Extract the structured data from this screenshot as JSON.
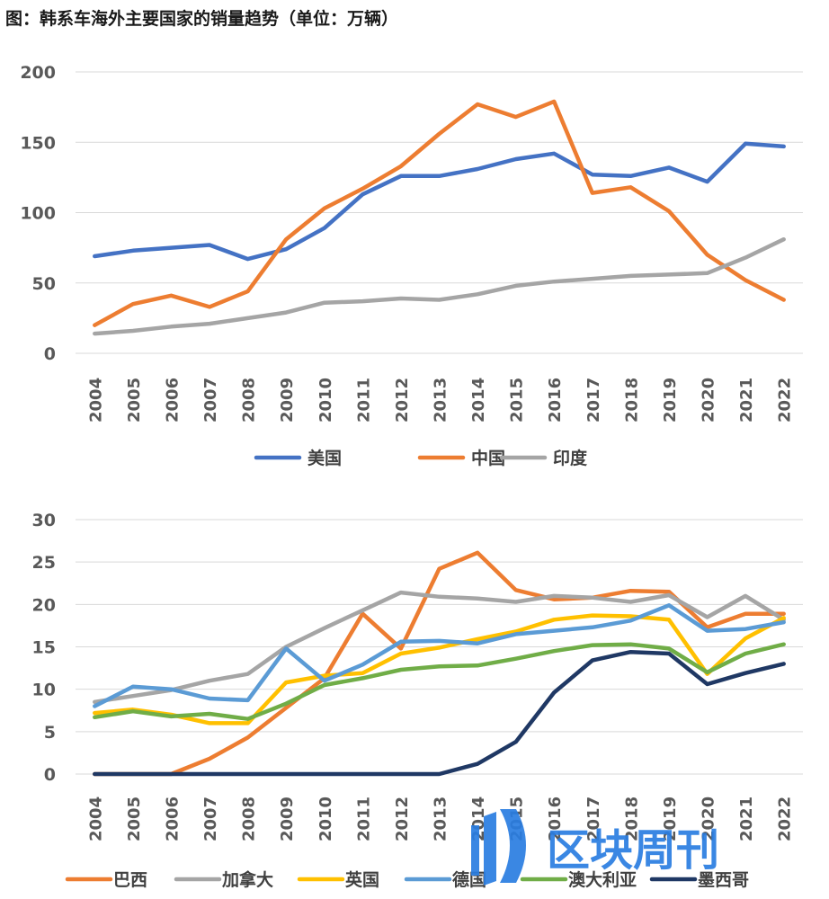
{
  "figure_title": "图：韩系车海外主要国家的销量趋势（单位：万辆）",
  "watermark": {
    "text": "区块周刊",
    "color": "#2a7de1"
  },
  "chart_data": [
    {
      "type": "line",
      "title": "",
      "xlabel": "",
      "ylabel": "",
      "x": [
        "2004",
        "2005",
        "2006",
        "2007",
        "2008",
        "2009",
        "2010",
        "2011",
        "2012",
        "2013",
        "2014",
        "2015",
        "2016",
        "2017",
        "2018",
        "2019",
        "2020",
        "2021",
        "2022"
      ],
      "ylim": [
        0,
        200
      ],
      "yticks": [
        0,
        50,
        100,
        150,
        200
      ],
      "grid": true,
      "legend": "bottom",
      "series": [
        {
          "name": "美国",
          "color": "#4472c4",
          "values": [
            69,
            73,
            75,
            77,
            67,
            74,
            89,
            113,
            126,
            126,
            131,
            138,
            142,
            127,
            126,
            132,
            122,
            149,
            147
          ]
        },
        {
          "name": "中国",
          "color": "#ed7d31",
          "values": [
            20,
            35,
            41,
            33,
            44,
            81,
            103,
            117,
            133,
            156,
            177,
            168,
            179,
            114,
            118,
            101,
            70,
            52,
            38
          ]
        },
        {
          "name": "印度",
          "color": "#a5a5a5",
          "values": [
            14,
            16,
            19,
            21,
            25,
            29,
            36,
            37,
            39,
            38,
            42,
            48,
            51,
            53,
            55,
            56,
            57,
            68,
            81
          ]
        }
      ]
    },
    {
      "type": "line",
      "title": "",
      "xlabel": "",
      "ylabel": "",
      "x": [
        "2004",
        "2005",
        "2006",
        "2007",
        "2008",
        "2009",
        "2010",
        "2011",
        "2012",
        "2013",
        "2014",
        "2015",
        "2016",
        "2017",
        "2018",
        "2019",
        "2020",
        "2021",
        "2022"
      ],
      "ylim": [
        0,
        30
      ],
      "yticks": [
        0,
        5,
        10,
        15,
        20,
        25,
        30
      ],
      "grid": true,
      "legend": "bottom",
      "series": [
        {
          "name": "巴西",
          "color": "#ed7d31",
          "values": [
            0,
            0,
            0,
            1.8,
            4.3,
            7.8,
            11.3,
            18.9,
            14.8,
            24.2,
            26.1,
            21.7,
            20.6,
            20.8,
            21.6,
            21.5,
            17.3,
            18.9,
            18.9
          ]
        },
        {
          "name": "加拿大",
          "color": "#a5a5a5",
          "values": [
            8.5,
            9.2,
            9.9,
            11.0,
            11.8,
            15.0,
            17.2,
            19.3,
            21.4,
            20.9,
            20.7,
            20.3,
            21.0,
            20.8,
            20.3,
            21.1,
            18.5,
            21.0,
            18.2
          ]
        },
        {
          "name": "英国",
          "color": "#ffc000",
          "values": [
            7.2,
            7.6,
            7.0,
            6.0,
            6.0,
            10.8,
            11.6,
            11.9,
            14.2,
            14.9,
            15.9,
            16.8,
            18.2,
            18.7,
            18.6,
            18.2,
            11.8,
            16.0,
            18.4
          ]
        },
        {
          "name": "德国",
          "color": "#5b9bd5",
          "values": [
            8.0,
            10.3,
            10.0,
            8.9,
            8.7,
            14.8,
            11.0,
            12.9,
            15.6,
            15.7,
            15.4,
            16.5,
            16.9,
            17.3,
            18.1,
            19.9,
            16.9,
            17.1,
            17.9
          ]
        },
        {
          "name": "澳大利亚",
          "color": "#70ad47",
          "values": [
            6.7,
            7.4,
            6.8,
            7.1,
            6.5,
            8.3,
            10.5,
            11.3,
            12.3,
            12.7,
            12.8,
            13.6,
            14.5,
            15.2,
            15.3,
            14.8,
            12.0,
            14.2,
            15.3
          ]
        },
        {
          "name": "墨西哥",
          "color": "#1f3864",
          "values": [
            0,
            0,
            0,
            0,
            0,
            0,
            0,
            0,
            0,
            0,
            1.2,
            3.8,
            9.6,
            13.4,
            14.4,
            14.2,
            10.6,
            11.9,
            13.0
          ]
        }
      ]
    }
  ]
}
